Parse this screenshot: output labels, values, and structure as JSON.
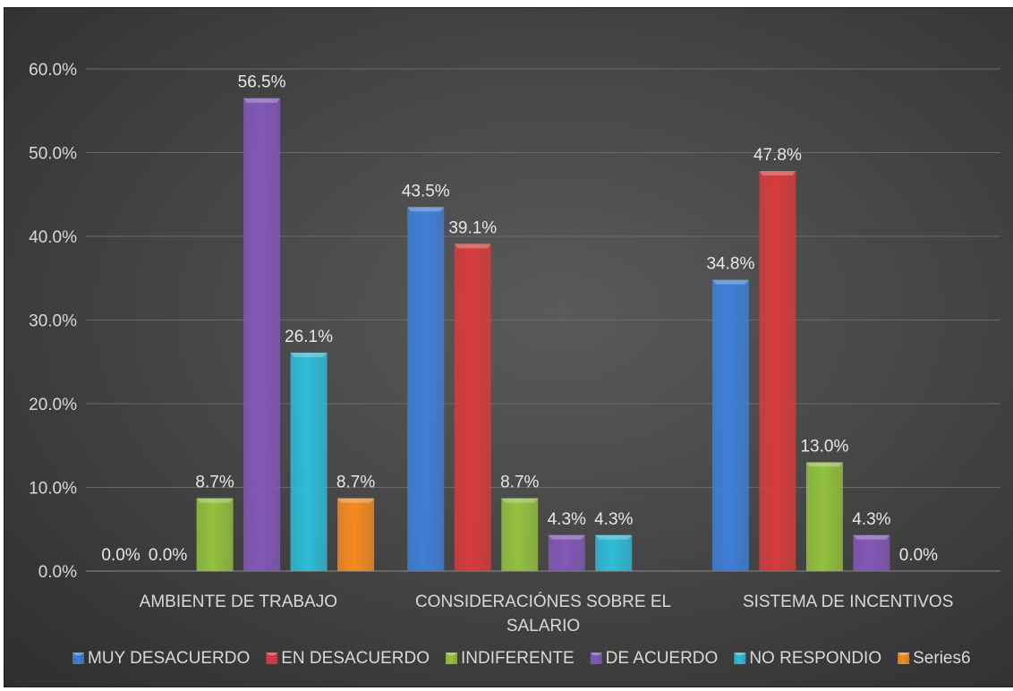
{
  "chart_data": {
    "type": "bar",
    "title": "",
    "xlabel": "",
    "ylabel": "",
    "ylim": [
      0,
      60
    ],
    "yticks": [
      "0.0%",
      "10.0%",
      "20.0%",
      "30.0%",
      "40.0%",
      "50.0%",
      "60.0%"
    ],
    "grid": true,
    "legend_position": "bottom",
    "categories": [
      [
        "AMBIENTE DE TRABAJO"
      ],
      [
        "CONSIDERACIÓNES SOBRE EL",
        "SALARIO"
      ],
      [
        "SISTEMA DE INCENTIVOS"
      ]
    ],
    "series": [
      {
        "name": "MUY DESACUERDO",
        "color": "#3f7fd6",
        "values": [
          0.0,
          43.5,
          34.8
        ],
        "labels": [
          "0.0%",
          "43.5%",
          "34.8%"
        ]
      },
      {
        "name": "EN DESACUERDO",
        "color": "#d63c3c",
        "values": [
          0.0,
          39.1,
          47.8
        ],
        "labels": [
          "0.0%",
          "39.1%",
          "47.8%"
        ]
      },
      {
        "name": "INDIFERENTE",
        "color": "#93c13e",
        "values": [
          8.7,
          8.7,
          13.0
        ],
        "labels": [
          "8.7%",
          "8.7%",
          "13.0%"
        ]
      },
      {
        "name": "DE ACUERDO",
        "color": "#8258b8",
        "values": [
          56.5,
          4.3,
          4.3
        ],
        "labels": [
          "56.5%",
          "4.3%",
          "4.3%"
        ]
      },
      {
        "name": "NO RESPONDIO",
        "color": "#2ebcd6",
        "values": [
          26.1,
          4.3,
          0.0
        ],
        "labels": [
          "26.1%",
          "4.3%",
          "0.0%"
        ]
      },
      {
        "name": "Series6",
        "color": "#f58a1f",
        "values": [
          8.7,
          null,
          null
        ],
        "labels": [
          "8.7%",
          null,
          null
        ]
      }
    ]
  }
}
